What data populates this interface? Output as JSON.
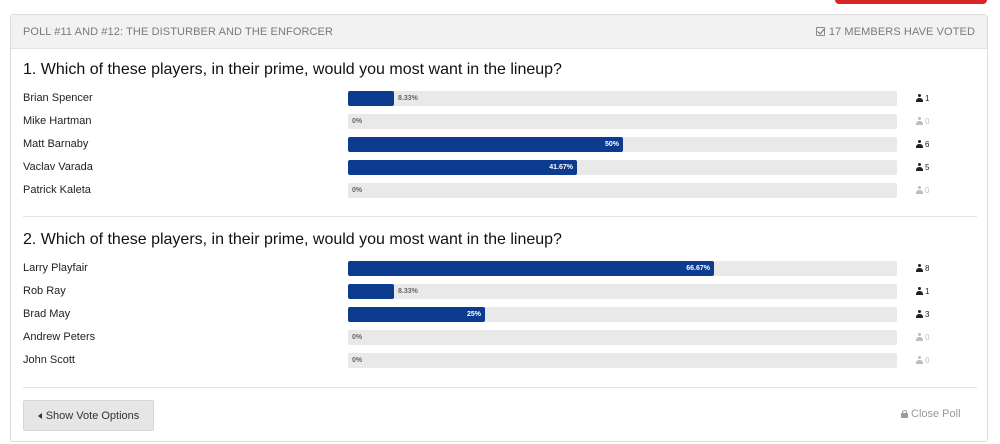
{
  "poll": {
    "title": "POLL #11 AND #12: THE DISTURBER AND THE ENFORCER",
    "voted_text": "17 MEMBERS HAVE VOTED",
    "accent_color": "#0c3b90",
    "questions": [
      {
        "title": "1. Which of these players, in their prime, would you most want in the lineup?",
        "options": [
          {
            "name": "Brian Spencer",
            "percent": 8.33,
            "percent_label": "8.33%",
            "votes": "1"
          },
          {
            "name": "Mike Hartman",
            "percent": 0,
            "percent_label": "0%",
            "votes": "0"
          },
          {
            "name": "Matt Barnaby",
            "percent": 50,
            "percent_label": "50%",
            "votes": "6"
          },
          {
            "name": "Vaclav Varada",
            "percent": 41.67,
            "percent_label": "41.67%",
            "votes": "5"
          },
          {
            "name": "Patrick Kaleta",
            "percent": 0,
            "percent_label": "0%",
            "votes": "0"
          }
        ]
      },
      {
        "title": "2. Which of these players, in their prime, would you most want in the lineup?",
        "options": [
          {
            "name": "Larry Playfair",
            "percent": 66.67,
            "percent_label": "66.67%",
            "votes": "8"
          },
          {
            "name": "Rob Ray",
            "percent": 8.33,
            "percent_label": "8.33%",
            "votes": "1"
          },
          {
            "name": "Brad May",
            "percent": 25,
            "percent_label": "25%",
            "votes": "3"
          },
          {
            "name": "Andrew Peters",
            "percent": 0,
            "percent_label": "0%",
            "votes": "0"
          },
          {
            "name": "John Scott",
            "percent": 0,
            "percent_label": "0%",
            "votes": "0"
          }
        ]
      }
    ],
    "show_vote_options_label": "Show Vote Options",
    "close_poll_label": "Close Poll"
  }
}
